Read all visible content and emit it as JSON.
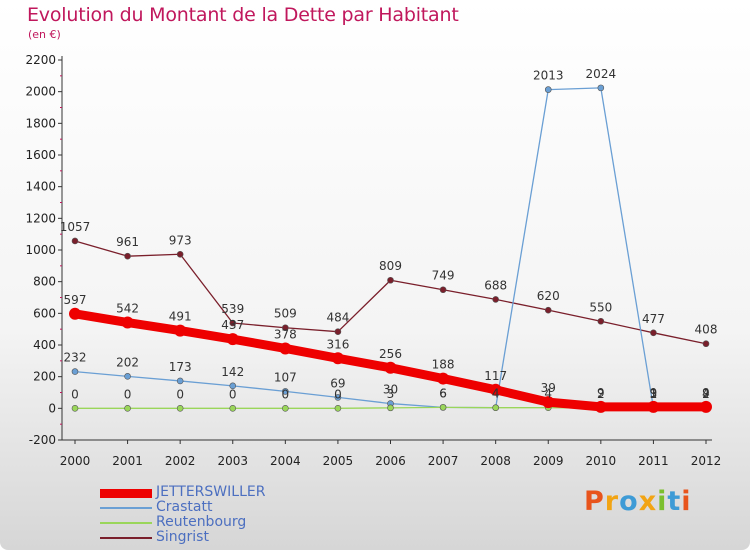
{
  "header": {
    "title": "Evolution du Montant de la Dette par Habitant",
    "subtitle": "(en €)"
  },
  "chart_data": {
    "type": "line",
    "title": "Evolution du Montant de la Dette par Habitant",
    "subtitle": "(en €)",
    "x": [
      "2000",
      "2001",
      "2002",
      "2003",
      "2004",
      "2005",
      "2006",
      "2007",
      "2008",
      "2009",
      "2010",
      "2011",
      "2012"
    ],
    "ylim": [
      -200,
      2200
    ],
    "yticks": [
      -200,
      0,
      200,
      400,
      600,
      800,
      1000,
      1200,
      1400,
      1600,
      1800,
      2000,
      2200
    ],
    "grid": false,
    "legend_position": "bottom-left",
    "series": [
      {
        "name": "Singrist",
        "color": "#7a1f2b",
        "values": [
          1057,
          961,
          973,
          539,
          509,
          484,
          809,
          749,
          688,
          620,
          550,
          477,
          408
        ]
      },
      {
        "name": "Crastatt",
        "color": "#6a9fd4",
        "values": [
          232,
          202,
          173,
          142,
          107,
          69,
          30,
          6,
          4,
          2013,
          2024,
          3,
          2
        ]
      },
      {
        "name": "Reutenbourg",
        "color": "#9ad65a",
        "values": [
          0,
          0,
          0,
          0,
          0,
          0,
          3,
          6,
          4,
          4,
          2,
          1,
          4
        ]
      },
      {
        "name": "JETTERSWILLER",
        "color": "#ee0000",
        "values": [
          597,
          542,
          491,
          437,
          378,
          316,
          256,
          188,
          117,
          39,
          9,
          9,
          9
        ]
      }
    ]
  },
  "legend": {
    "items": [
      {
        "label": "JETTERSWILLER",
        "color": "#ee0000"
      },
      {
        "label": "Crastatt",
        "color": "#6a9fd4"
      },
      {
        "label": "Reutenbourg",
        "color": "#9ad65a"
      },
      {
        "label": "Singrist",
        "color": "#7a1f2b"
      }
    ]
  },
  "brand": {
    "letters": [
      "P",
      "r",
      "o",
      "x",
      "i",
      "t",
      "i"
    ],
    "colors": [
      "#e8541c",
      "#f2a413",
      "#3e9bd6",
      "#f2a413",
      "#7bbf2d",
      "#3e9bd6",
      "#e8541c"
    ]
  }
}
